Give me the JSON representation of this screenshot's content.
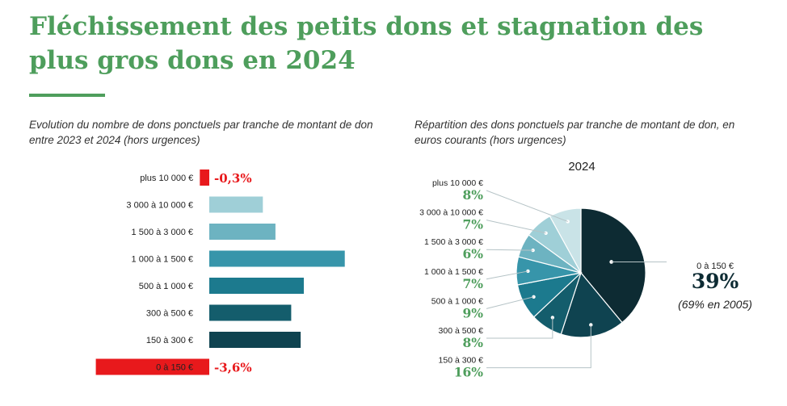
{
  "header": {
    "title": "Fléchissement des petits dons et stagnation des plus gros dons en 2024"
  },
  "colors": {
    "green": "#4e9e5c",
    "negative": "#e8191c",
    "navy": "#0d2b33"
  },
  "chart_data": [
    {
      "type": "bar",
      "orientation": "horizontal",
      "title": "Evolution du nombre de dons ponctuels par tranche de montant de don entre 2023 et 2024 (hors urgences)",
      "categories": [
        "plus 10 000 €",
        "3 000 à 10 000 €",
        "1 500 à 3 000 €",
        "1 000 à 1 500 €",
        "500 à 1 000 €",
        "300 à 500 €",
        "150 à 300 €",
        "0 à 150 €"
      ],
      "values": [
        -0.3,
        1.7,
        2.1,
        4.3,
        3.0,
        2.6,
        2.9,
        -3.6
      ],
      "data_labels": [
        "-0,3%",
        "",
        "",
        "",
        "",
        "",
        "",
        "-3,6%"
      ],
      "colors": [
        "#e8191c",
        "#9fcfd7",
        "#6db3c1",
        "#3795aa",
        "#1c7a8e",
        "#145d6c",
        "#0f4350",
        "#e8191c"
      ],
      "xlim": [
        -5.5,
        6
      ]
    },
    {
      "type": "pie",
      "title": "Répartition des dons ponctuels par tranche de montant de don, en euros courants (hors urgences)",
      "year": "2024",
      "slices": [
        {
          "label": "0 à 150 €",
          "value": 39,
          "value_label": "39%",
          "color": "#0d2b33"
        },
        {
          "label": "150 à 300 €",
          "value": 16,
          "value_label": "16%",
          "color": "#0f4350"
        },
        {
          "label": "300 à 500 €",
          "value": 8,
          "value_label": "8%",
          "color": "#145d6c"
        },
        {
          "label": "500 à 1 000 €",
          "value": 9,
          "value_label": "9%",
          "color": "#1c7a8e"
        },
        {
          "label": "1 000 à 1 500 €",
          "value": 7,
          "value_label": "7%",
          "color": "#3795aa"
        },
        {
          "label": "1 500 à 3 000 €",
          "value": 6,
          "value_label": "6%",
          "color": "#6db3c1"
        },
        {
          "label": "3 000 à 10 000 €",
          "value": 7,
          "value_label": "7%",
          "color": "#9fcfd7"
        },
        {
          "label": "plus 10 000 €",
          "value": 8,
          "value_label": "8%",
          "color": "#c9e3e7"
        }
      ],
      "annotation": "(69% en 2005)"
    }
  ]
}
